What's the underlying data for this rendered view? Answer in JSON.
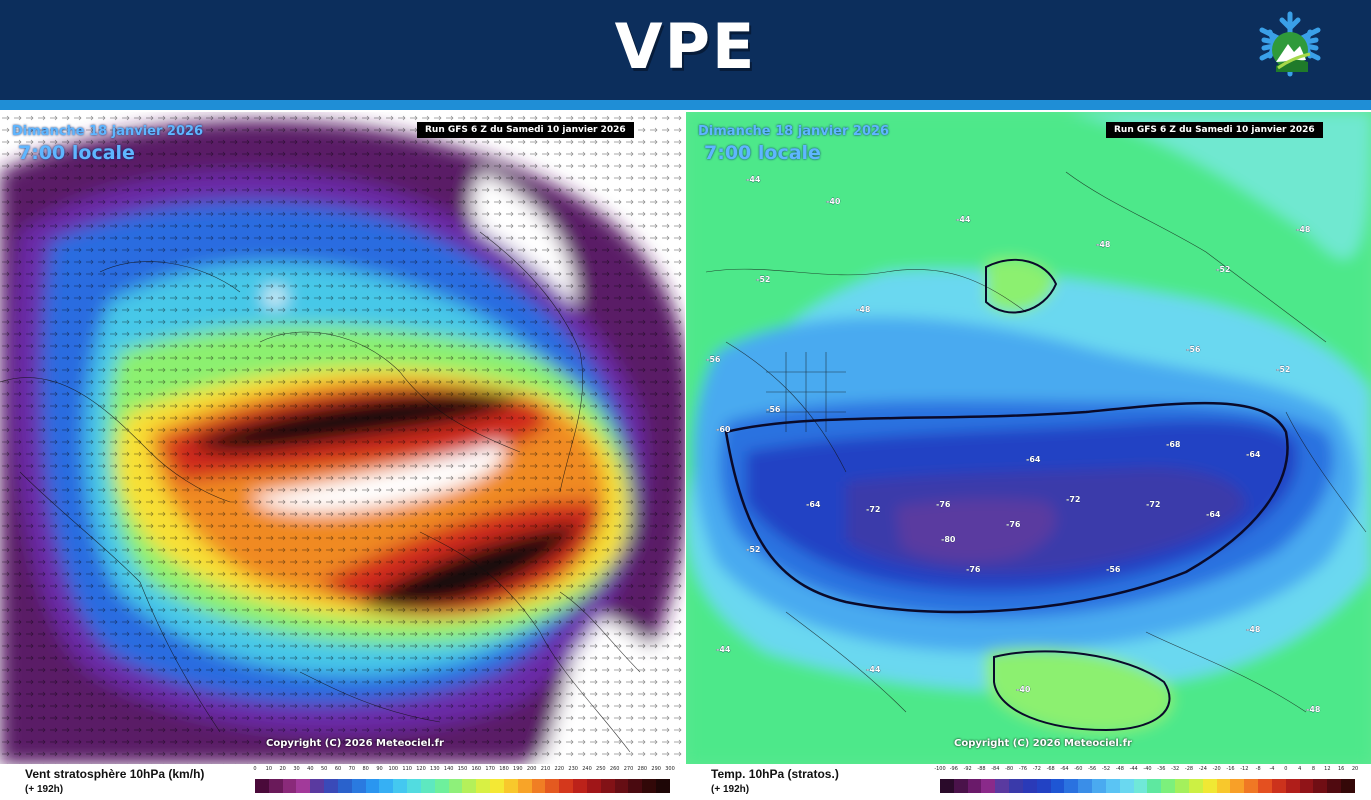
{
  "header": {
    "title": "VPE",
    "logo": "snowflake-mountain-logo",
    "colors": {
      "banner": "#0c2e5c",
      "strip": "#1f8ed6"
    }
  },
  "left_panel": {
    "date": "Dimanche 18 janvier 2026",
    "time": "7:00 locale",
    "run": "Run GFS 6 Z du Samedi 10 janvier 2026",
    "copyright": "Copyright (C) 2026 Meteociel.fr",
    "legend": {
      "param": "Vent stratosphère 10hPa (km/h)",
      "lead": "(+ 192h)",
      "ticks": [
        "0",
        "10",
        "20",
        "30",
        "40",
        "50",
        "60",
        "70",
        "80",
        "90",
        "100",
        "110",
        "120",
        "130",
        "140",
        "150",
        "160",
        "170",
        "180",
        "190",
        "200",
        "210",
        "220",
        "230",
        "240",
        "250",
        "260",
        "270",
        "280",
        "290",
        "300"
      ],
      "colors": [
        "#4a0a3a",
        "#6a1a5a",
        "#8a2a7a",
        "#a23a9a",
        "#5a3aa0",
        "#3a4ab8",
        "#2a62cc",
        "#2a7ae0",
        "#2a96f0",
        "#36b0f4",
        "#44c8f0",
        "#52dce0",
        "#5ee8c0",
        "#6ef09c",
        "#8ef07a",
        "#b4f05a",
        "#d8f044",
        "#f4e834",
        "#f8c82c",
        "#f8a428",
        "#f07e24",
        "#e45a20",
        "#d4381c",
        "#bc221a",
        "#a01618",
        "#821216",
        "#660e14",
        "#4a0a10",
        "#320808",
        "#1e0606"
      ]
    }
  },
  "right_panel": {
    "date": "Dimanche 18 janvier 2026",
    "time": "7:00 locale",
    "run": "Run GFS 6 Z du Samedi 10 janvier 2026",
    "copyright": "Copyright (C) 2026 Meteociel.fr",
    "legend": {
      "param": "Temp. 10hPa (stratos.)",
      "lead": "(+ 192h)",
      "ticks": [
        "-100",
        "-96",
        "-92",
        "-88",
        "-84",
        "-80",
        "-76",
        "-72",
        "-68",
        "-64",
        "-60",
        "-56",
        "-52",
        "-48",
        "-44",
        "-40",
        "-36",
        "-32",
        "-28",
        "-24",
        "-20",
        "-16",
        "-12",
        "-8",
        "-4",
        "0",
        "4",
        "8",
        "12",
        "16",
        "20"
      ],
      "colors": [
        "#2a0a2a",
        "#4a124a",
        "#6a1a6a",
        "#8a2a8a",
        "#5a3aa0",
        "#3a3aaa",
        "#2a3ab8",
        "#2242c4",
        "#1e56d4",
        "#2a72e0",
        "#3a8ee8",
        "#4aaaf0",
        "#5ac4f4",
        "#6ad8f0",
        "#70e8d8",
        "#5ee8a0",
        "#7cf07c",
        "#a4f05c",
        "#ccf044",
        "#f0e834",
        "#f8c82c",
        "#f8a028",
        "#f07824",
        "#e45020",
        "#cc321c",
        "#b01e1a",
        "#901418",
        "#700e14",
        "#500a10",
        "#340808"
      ]
    },
    "labels": [
      "-44",
      "-40",
      "-48",
      "-52",
      "-56",
      "-60",
      "-64",
      "-68",
      "-72",
      "-76",
      "-80"
    ]
  }
}
